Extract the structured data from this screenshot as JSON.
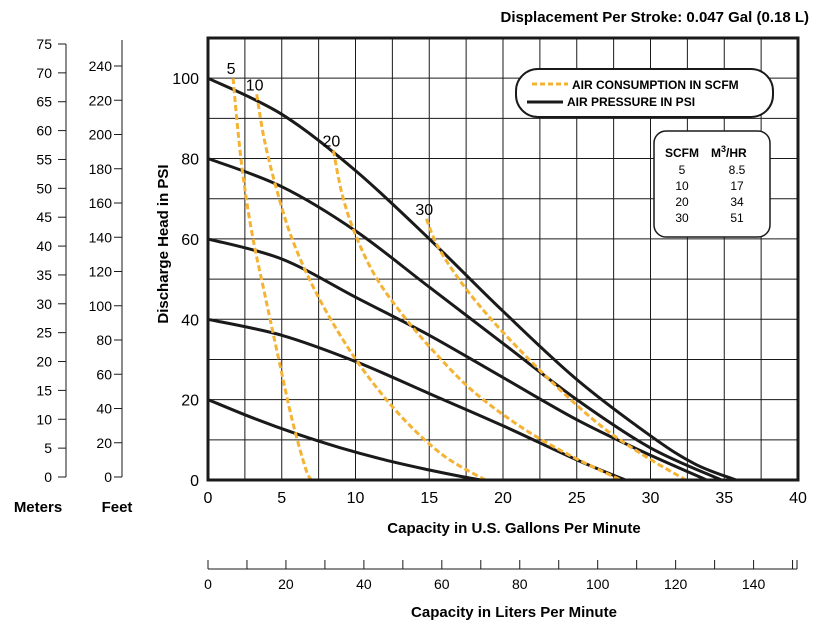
{
  "chart_data": {
    "type": "line",
    "title": "Displacement Per Stroke: 0.047 Gal (0.18 L)",
    "xlabel": "Capacity in U.S. Gallons Per Minute",
    "ylabel": "Discharge Head in PSI",
    "xlim": [
      0,
      40
    ],
    "ylim": [
      0,
      110
    ],
    "x_ticks": [
      "0",
      "5",
      "10",
      "15",
      "20",
      "25",
      "30",
      "35",
      "40"
    ],
    "y_ticks": [
      "0",
      "20",
      "40",
      "60",
      "80",
      "100"
    ],
    "grid": true,
    "legend": {
      "position": "top-right",
      "air_consumption_label": "AIR CONSUMPTION IN SCFM",
      "air_pressure_label": "AIR PRESSURE IN PSI"
    },
    "colors": {
      "pressure": "#1a1a1a",
      "air": "#f5b335"
    },
    "pressure_series": [
      {
        "x": [
          0,
          5,
          10,
          15,
          20,
          25,
          30,
          33,
          35.8
        ],
        "y": [
          100,
          91,
          77,
          60,
          42,
          25,
          11,
          4,
          0
        ]
      },
      {
        "x": [
          0,
          5,
          10,
          15,
          20,
          25,
          30,
          34.8
        ],
        "y": [
          80,
          73,
          62,
          48,
          34,
          20,
          8,
          0
        ]
      },
      {
        "x": [
          0,
          5,
          10,
          15,
          20,
          25,
          29.5,
          33.8
        ],
        "y": [
          60,
          55,
          45.5,
          36,
          25.5,
          15,
          7,
          0
        ]
      },
      {
        "x": [
          0,
          5,
          10,
          15,
          20,
          25,
          28.3
        ],
        "y": [
          40,
          36,
          29.5,
          21.5,
          13.5,
          5,
          0
        ]
      },
      {
        "x": [
          0,
          3,
          6,
          9,
          12,
          15,
          17,
          18.5
        ],
        "y": [
          20,
          15.5,
          11.5,
          8,
          5,
          2.5,
          1,
          0
        ]
      }
    ],
    "air_series": [
      {
        "label": "5",
        "x": [
          1.7,
          2.0,
          2.4,
          3.0,
          3.8,
          4.8,
          5.7,
          6.6,
          7.0
        ],
        "y": [
          100,
          88,
          75,
          61,
          47,
          30,
          15,
          3,
          0
        ]
      },
      {
        "label": "10",
        "x": [
          3.3,
          3.8,
          4.6,
          5.6,
          7.0,
          8.8,
          10.8,
          13.3,
          16.0,
          18.8
        ],
        "y": [
          96,
          85,
          73,
          61,
          49,
          37,
          26,
          15,
          6,
          0
        ]
      },
      {
        "label": "20",
        "x": [
          8.5,
          9.1,
          10.0,
          11.3,
          13.0,
          15.3,
          18.0,
          21.3,
          24.6,
          28.0
        ],
        "y": [
          82,
          71,
          61,
          51,
          42,
          32,
          22,
          13,
          6,
          0
        ]
      },
      {
        "label": "30",
        "x": [
          14.8,
          15.6,
          17.2,
          19.2,
          21.5,
          24.0,
          26.8,
          29.6,
          32.4
        ],
        "y": [
          65,
          58,
          49,
          40,
          31,
          22,
          13,
          6,
          0
        ]
      }
    ],
    "secondary_axes": {
      "meters": {
        "label": "Meters",
        "ticks": [
          "75",
          "70",
          "65",
          "60",
          "55",
          "50",
          "45",
          "40",
          "35",
          "30",
          "25",
          "20",
          "15",
          "10",
          "5",
          "0"
        ]
      },
      "feet": {
        "label": "Feet",
        "ticks": [
          "240",
          "220",
          "200",
          "180",
          "160",
          "140",
          "120",
          "100",
          "80",
          "60",
          "40",
          "20",
          "0"
        ]
      },
      "liters": {
        "label": "Capacity in Liters Per Minute",
        "ticks": [
          "0",
          "20",
          "40",
          "60",
          "80",
          "100",
          "120",
          "140"
        ]
      }
    },
    "scfm_table": {
      "headers": [
        "SCFM",
        "M",
        "3",
        "/HR"
      ],
      "rows": [
        [
          "5",
          "8.5"
        ],
        [
          "10",
          "17"
        ],
        [
          "20",
          "34"
        ],
        [
          "30",
          "51"
        ]
      ]
    }
  }
}
